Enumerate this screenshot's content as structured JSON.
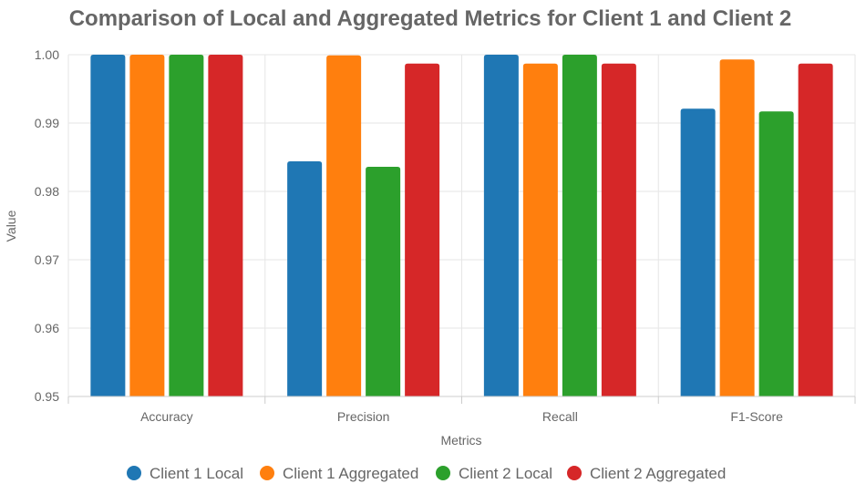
{
  "chart_data": {
    "type": "bar",
    "title": "Comparison of Local and Aggregated Metrics for Client 1 and Client 2",
    "xlabel": "Metrics",
    "ylabel": "Value",
    "categories": [
      "Accuracy",
      "Precision",
      "Recall",
      "F1-Score"
    ],
    "ylim": [
      0.95,
      1.0
    ],
    "yticks": [
      "0.95",
      "0.96",
      "0.97",
      "0.98",
      "0.99",
      "1.00"
    ],
    "ytick_values": [
      0.95,
      0.96,
      0.97,
      0.98,
      0.99,
      1.0
    ],
    "grid": true,
    "legend_position": "bottom",
    "series": [
      {
        "name": "Client 1 Local",
        "color": "#1f77b4",
        "values": [
          1.0,
          0.9844,
          1.0,
          0.9921
        ]
      },
      {
        "name": "Client 1 Aggregated",
        "color": "#ff7f0e",
        "values": [
          1.0,
          0.9999,
          0.9987,
          0.9993
        ]
      },
      {
        "name": "Client 2 Local",
        "color": "#2ca02c",
        "values": [
          1.0,
          0.9836,
          1.0,
          0.9917
        ]
      },
      {
        "name": "Client 2 Aggregated",
        "color": "#d62728",
        "values": [
          1.0,
          0.9987,
          0.9987,
          0.9987
        ]
      }
    ]
  }
}
